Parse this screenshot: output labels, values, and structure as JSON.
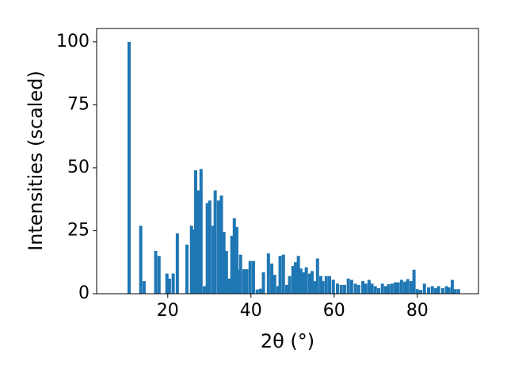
{
  "chart_data": {
    "type": "bar",
    "xlabel": "2θ (°)",
    "ylabel": "Intensities (scaled)",
    "color": "#1f77b4",
    "xlim": [
      2.9,
      94.7
    ],
    "ylim": [
      0,
      105.3
    ],
    "xticks": [
      20,
      40,
      60,
      80
    ],
    "yticks": [
      0,
      25,
      50,
      75,
      100
    ],
    "x": [
      10.7,
      13.5,
      14.3,
      17.1,
      17.9,
      19.8,
      20.4,
      21.3,
      22.3,
      24.6,
      25.7,
      26.1,
      26.7,
      27.4,
      28,
      28.8,
      29.5,
      30.1,
      30.9,
      31.4,
      32.2,
      32.9,
      33.5,
      34.1,
      34.7,
      35.4,
      36,
      36.6,
      37,
      37.5,
      38.3,
      39,
      39.8,
      40.6,
      41.5,
      42.3,
      43,
      44.2,
      45,
      45.7,
      46.5,
      47,
      47.8,
      48.6,
      49.3,
      50.1,
      50.7,
      51.4,
      52,
      52.6,
      53.3,
      54.1,
      54.7,
      55.4,
      56,
      56.8,
      57.3,
      58.1,
      58.9,
      59.8,
      60.8,
      61.7,
      62.5,
      63.4,
      64.2,
      65.1,
      65.9,
      66.9,
      67.6,
      68.4,
      69.1,
      69.9,
      70.7,
      71.6,
      72.4,
      73.1,
      73.9,
      74.7,
      75.4,
      76.2,
      77,
      77.7,
      78.5,
      79.2,
      80,
      80.8,
      81.7,
      82.7,
      83.6,
      84.4,
      85.1,
      86.1,
      87,
      87.6,
      88.4,
      89.1,
      89.9
    ],
    "values": [
      100,
      27,
      5,
      17,
      15,
      8,
      6,
      8,
      24,
      19.5,
      27,
      25.5,
      49,
      41,
      49.5,
      3,
      36,
      37,
      27,
      41,
      37,
      39,
      24.5,
      17,
      6,
      23,
      30,
      26.5,
      9.5,
      15.5,
      9.7,
      9.7,
      13,
      13,
      1.7,
      2,
      8.5,
      16,
      12,
      7.5,
      3,
      15,
      15.5,
      3.5,
      7,
      11,
      12.5,
      15,
      10,
      8.5,
      10.5,
      8,
      9,
      5,
      14,
      7,
      5,
      7,
      7,
      5.5,
      4,
      3.5,
      3.5,
      6,
      5.5,
      4,
      3.5,
      5,
      4,
      5.5,
      4,
      3,
      2.2,
      4,
      3,
      3.8,
      4,
      4.5,
      4.5,
      5.5,
      4.8,
      5.8,
      5,
      9.5,
      1.8,
      1.5,
      4,
      2.5,
      3,
      2.2,
      3,
      2.2,
      3,
      2.5,
      5.5,
      1.8,
      1.8
    ]
  }
}
